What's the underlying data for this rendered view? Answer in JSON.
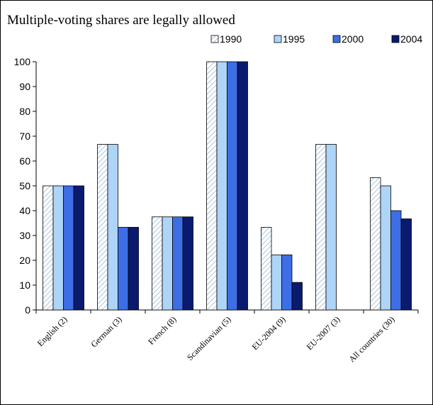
{
  "chart_data": {
    "type": "bar",
    "title": "Multiple-voting shares are legally allowed",
    "categories": [
      "English (2)",
      "German (3)",
      "French (8)",
      "Scandinavian (5)",
      "EU-2004 (9)",
      "EU-2007 (3)",
      "All countries (30)"
    ],
    "series": [
      {
        "name": "1990",
        "values": [
          50,
          66.7,
          37.5,
          100,
          33.3,
          66.7,
          53.3
        ]
      },
      {
        "name": "1995",
        "values": [
          50,
          66.7,
          37.5,
          100,
          22.2,
          66.7,
          50
        ]
      },
      {
        "name": "2000",
        "values": [
          50,
          33.3,
          37.5,
          100,
          22.2,
          0,
          40
        ]
      },
      {
        "name": "2004",
        "values": [
          50,
          33.3,
          37.5,
          100,
          11.1,
          0,
          36.7
        ]
      }
    ],
    "ylim": [
      0,
      100
    ],
    "yticks": [
      0,
      10,
      20,
      30,
      40,
      50,
      60,
      70,
      80,
      90,
      100
    ],
    "xlabel": "",
    "ylabel": "",
    "grid": false,
    "legend_position": "top",
    "colors": {
      "1990": "#ffffff",
      "1990_hatch": "#a9c4dc",
      "1995": "#aed4f7",
      "2000": "#3d6ee6",
      "2004": "#0a1a6e",
      "bar_outline": "#000000"
    }
  }
}
